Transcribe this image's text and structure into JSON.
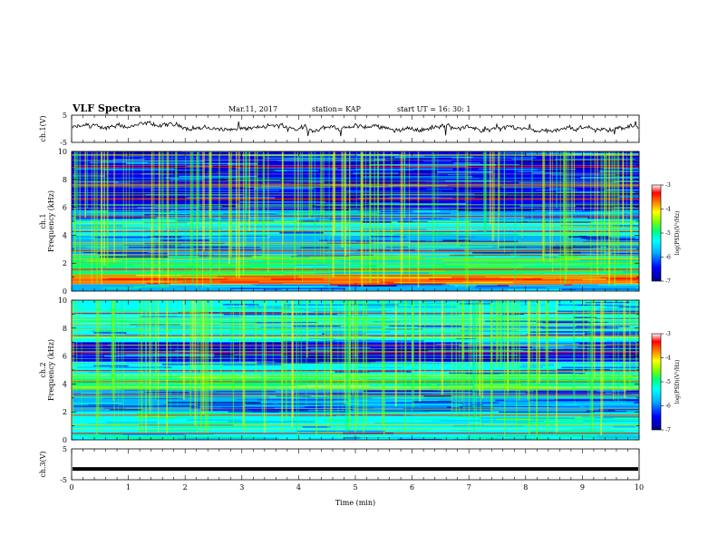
{
  "header": {
    "title": "VLF Spectra",
    "date": "Mar.11, 2017",
    "station": "station= KAP",
    "start": "start  UT =   16: 30: 1"
  },
  "colors": {
    "scale": [
      "#00007f",
      "#0000ff",
      "#00b4ff",
      "#00ffff",
      "#00ff7f",
      "#7fff00",
      "#ffff00",
      "#ff7f00",
      "#ff0000",
      "#ffffff"
    ],
    "trace": "#000000"
  },
  "colorbar": {
    "label": "log(PSD)(V²/Hz)",
    "ticks": [
      "-3",
      "-4",
      "-5",
      "-6",
      "-7"
    ],
    "range": [
      -7,
      -3
    ]
  },
  "chart_data": [
    {
      "type": "line",
      "name": "ch1-waveform",
      "ylabel": "ch.1(V)",
      "ylim": [
        -5,
        5
      ],
      "yticks": [
        "5",
        "-5"
      ],
      "xlim": [
        0,
        10
      ],
      "baseline_level": 0.3
    },
    {
      "type": "heatmap",
      "name": "ch1-spectrogram",
      "ylabel": "ch.1\nFrequency (kHz)",
      "ylabel_lines": [
        "ch.1",
        "Frequency (kHz)"
      ],
      "ylim": [
        0,
        10
      ],
      "yticks": [
        "10",
        "8",
        "6",
        "4",
        "2",
        "0"
      ],
      "xlim": [
        0,
        10
      ],
      "zlim": [
        -7,
        -3
      ],
      "bands_khz": [
        {
          "from": 0,
          "to": 0.5,
          "level": -5.8
        },
        {
          "from": 0.5,
          "to": 1.2,
          "level": -3.6
        },
        {
          "from": 1.2,
          "to": 2.5,
          "level": -5.2
        },
        {
          "from": 2.5,
          "to": 4.0,
          "level": -6.0
        },
        {
          "from": 4.0,
          "to": 5.0,
          "level": -5.5
        },
        {
          "from": 5.0,
          "to": 5.8,
          "level": -5.8
        },
        {
          "from": 5.8,
          "to": 7.2,
          "level": -6.4
        },
        {
          "from": 7.2,
          "to": 10,
          "level": -6.2
        }
      ],
      "hot_lines_khz": [
        0.8,
        1.6,
        2.9,
        4.3,
        5.4,
        6.6,
        7.7,
        8.9
      ]
    },
    {
      "type": "heatmap",
      "name": "ch2-spectrogram",
      "ylabel": "ch.2\nFrequency (kHz)",
      "ylabel_lines": [
        "ch.2",
        "Frequency (kHz)"
      ],
      "ylim": [
        0,
        10
      ],
      "yticks": [
        "10",
        "8",
        "6",
        "4",
        "2",
        "0"
      ],
      "xlim": [
        0,
        10
      ],
      "zlim": [
        -7,
        -3
      ],
      "bands_khz": [
        {
          "from": 0,
          "to": 0.6,
          "level": -5.5
        },
        {
          "from": 0.6,
          "to": 2.0,
          "level": -5.4
        },
        {
          "from": 2.0,
          "to": 3.6,
          "level": -6.1
        },
        {
          "from": 3.6,
          "to": 4.6,
          "level": -4.9
        },
        {
          "from": 4.6,
          "to": 5.6,
          "level": -5.6
        },
        {
          "from": 5.6,
          "to": 7.0,
          "level": -6.3
        },
        {
          "from": 7.0,
          "to": 10,
          "level": -5.6
        }
      ],
      "hot_lines_khz": [
        0.5,
        1.8,
        3.3,
        4.2,
        5.0,
        6.3,
        7.5,
        9.1
      ]
    },
    {
      "type": "line",
      "name": "ch3-waveform",
      "ylabel": "ch.3(V)",
      "ylim": [
        -5,
        5
      ],
      "yticks": [
        "5",
        "-5"
      ],
      "xlim": [
        0,
        10
      ],
      "flat_value": -1.5,
      "xlabel": "Time  (min)",
      "xticks": [
        "0",
        "1",
        "2",
        "3",
        "4",
        "5",
        "6",
        "7",
        "8",
        "9",
        "10"
      ]
    }
  ]
}
